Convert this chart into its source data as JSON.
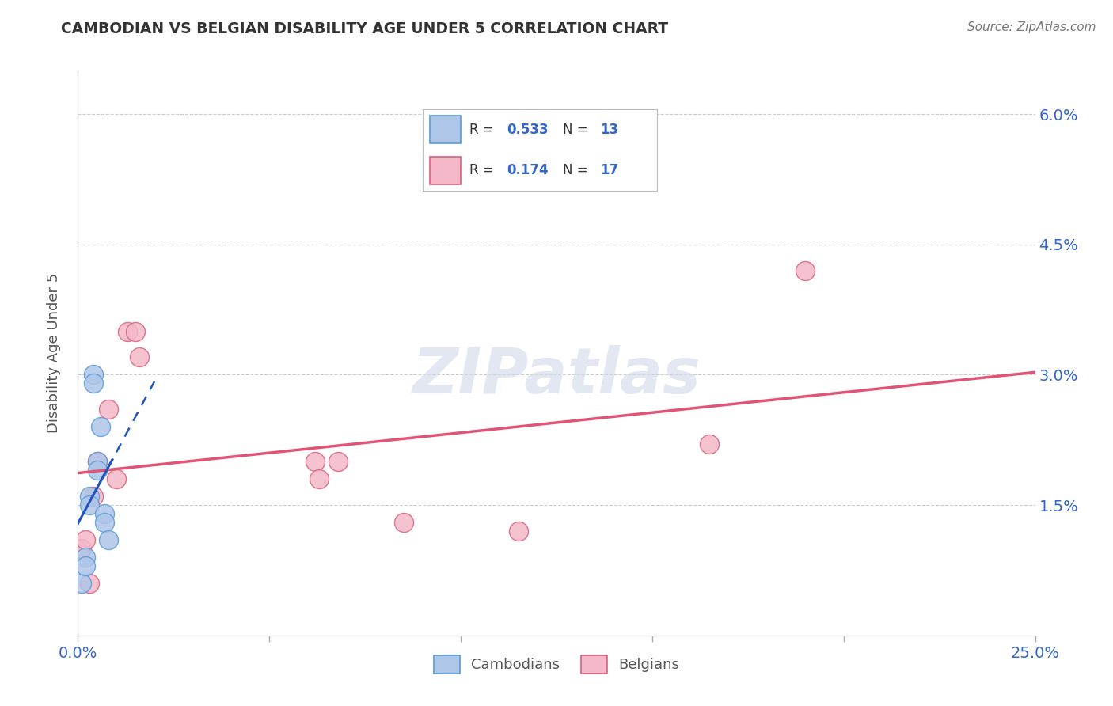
{
  "title": "CAMBODIAN VS BELGIAN DISABILITY AGE UNDER 5 CORRELATION CHART",
  "source": "Source: ZipAtlas.com",
  "ylabel": "Disability Age Under 5",
  "watermark": "ZIPatlas",
  "xlim": [
    0.0,
    0.25
  ],
  "ylim": [
    0.0,
    0.065
  ],
  "xticks": [
    0.0,
    0.05,
    0.1,
    0.15,
    0.2,
    0.25
  ],
  "yticks": [
    0.0,
    0.015,
    0.03,
    0.045,
    0.06
  ],
  "legend1_R": "0.533",
  "legend1_N": "13",
  "legend2_R": "0.174",
  "legend2_N": "17",
  "cambodian_color": "#aec6e8",
  "cambodian_edge": "#5b9bd5",
  "belgian_color": "#f4b8c8",
  "belgian_edge": "#d96080",
  "blue_line_color": "#2255bb",
  "pink_line_color": "#e05575",
  "cambodian_x": [
    0.001,
    0.002,
    0.002,
    0.003,
    0.003,
    0.004,
    0.004,
    0.005,
    0.005,
    0.006,
    0.007,
    0.007,
    0.008
  ],
  "cambodian_y": [
    0.006,
    0.009,
    0.008,
    0.016,
    0.015,
    0.03,
    0.029,
    0.02,
    0.019,
    0.024,
    0.014,
    0.013,
    0.011
  ],
  "belgian_x": [
    0.001,
    0.002,
    0.003,
    0.004,
    0.005,
    0.008,
    0.01,
    0.013,
    0.015,
    0.016,
    0.062,
    0.063,
    0.068,
    0.085,
    0.115,
    0.165,
    0.19
  ],
  "belgian_y": [
    0.01,
    0.011,
    0.006,
    0.016,
    0.02,
    0.026,
    0.018,
    0.035,
    0.035,
    0.032,
    0.02,
    0.018,
    0.02,
    0.013,
    0.012,
    0.022,
    0.042
  ],
  "cam_line_x0": 0.0,
  "cam_line_x1": 0.012,
  "bel_line_x0": 0.0,
  "bel_line_x1": 0.25
}
